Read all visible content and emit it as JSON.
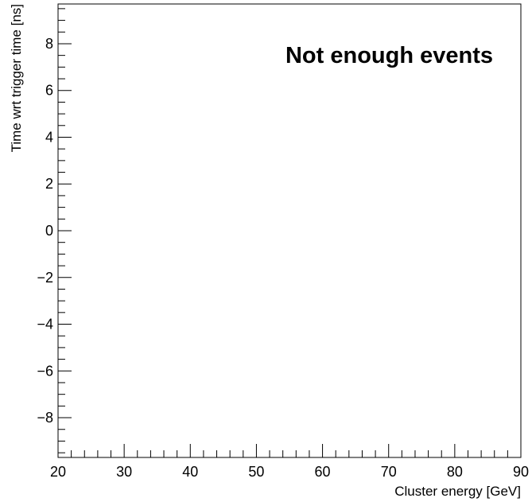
{
  "chart_data": {
    "type": "scatter",
    "title": "",
    "xlabel": "Cluster energy [GeV]",
    "ylabel": "Time wrt trigger time [ns]",
    "xlim": [
      20,
      90
    ],
    "ylim": [
      -9.7,
      9.7
    ],
    "x_ticks": [
      20,
      30,
      40,
      50,
      60,
      70,
      80,
      90
    ],
    "x_tick_labels": [
      "20",
      "30",
      "40",
      "50",
      "60",
      "70",
      "80",
      "90"
    ],
    "y_ticks": [
      -8,
      -6,
      -4,
      -2,
      0,
      2,
      4,
      6,
      8
    ],
    "y_tick_labels": [
      "−8",
      "−6",
      "−4",
      "−2",
      "0",
      "2",
      "4",
      "6",
      "8"
    ],
    "x_minor_step": 2,
    "y_minor_step": 0.5,
    "grid": false,
    "annotation": "Not enough events",
    "series": []
  }
}
